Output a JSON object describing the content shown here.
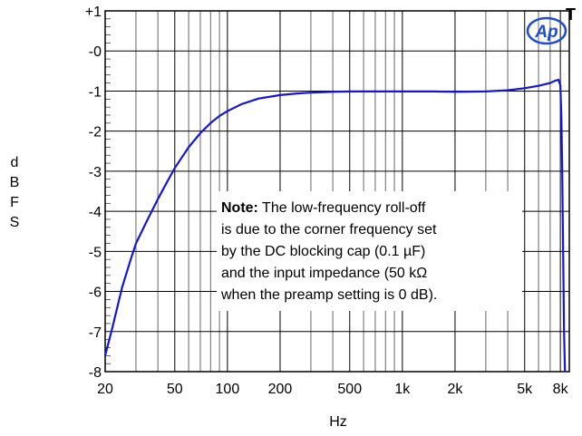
{
  "chart_data": {
    "type": "line",
    "title": "",
    "xlabel": "Hz",
    "ylabel": "dBFS",
    "xscale": "log",
    "xlim": [
      20,
      9000
    ],
    "ylim": [
      -8,
      1
    ],
    "grid": true,
    "x_ticks": [
      20,
      50,
      100,
      200,
      500,
      1000,
      2000,
      5000,
      8000
    ],
    "x_tick_labels": [
      "20",
      "50",
      "100",
      "200",
      "500",
      "1k",
      "2k",
      "5k",
      "8k"
    ],
    "y_ticks": [
      1,
      0,
      -1,
      -2,
      -3,
      -4,
      -5,
      -6,
      -7,
      -8
    ],
    "y_tick_labels": [
      "+1",
      "-0",
      "-1",
      "-2",
      "-3",
      "-4",
      "-5",
      "-6",
      "-7",
      "-8"
    ],
    "series": [
      {
        "color": "#1515d8",
        "x": [
          20,
          22,
          25,
          28,
          30,
          35,
          40,
          45,
          50,
          60,
          70,
          80,
          90,
          100,
          120,
          150,
          200,
          250,
          300,
          400,
          500,
          700,
          1000,
          1500,
          2000,
          3000,
          4000,
          5000,
          6000,
          7000,
          7500,
          7800,
          8000,
          8100,
          8200,
          8300,
          8400,
          8500
        ],
        "y": [
          -7.6,
          -6.9,
          -5.9,
          -5.2,
          -4.8,
          -4.2,
          -3.7,
          -3.28,
          -2.92,
          -2.4,
          -2.05,
          -1.8,
          -1.62,
          -1.5,
          -1.33,
          -1.19,
          -1.1,
          -1.06,
          -1.04,
          -1.02,
          -1.01,
          -1.01,
          -1.01,
          -1.01,
          -1.02,
          -1.01,
          -0.98,
          -0.93,
          -0.87,
          -0.8,
          -0.74,
          -0.72,
          -0.85,
          -1.6,
          -3.0,
          -5.0,
          -7.0,
          -8.0
        ]
      }
    ],
    "annotation": {
      "bold": "Note:",
      "lines": [
        " The low-frequency roll-off",
        "is due to the corner frequency set",
        "by the DC blocking cap (0.1 µF)",
        "and the input impedance (50 kΩ",
        "when the preamp setting is 0 dB)."
      ]
    }
  },
  "corner_marks": {
    "top_right_letter": "T",
    "logo_text": "Ap"
  }
}
